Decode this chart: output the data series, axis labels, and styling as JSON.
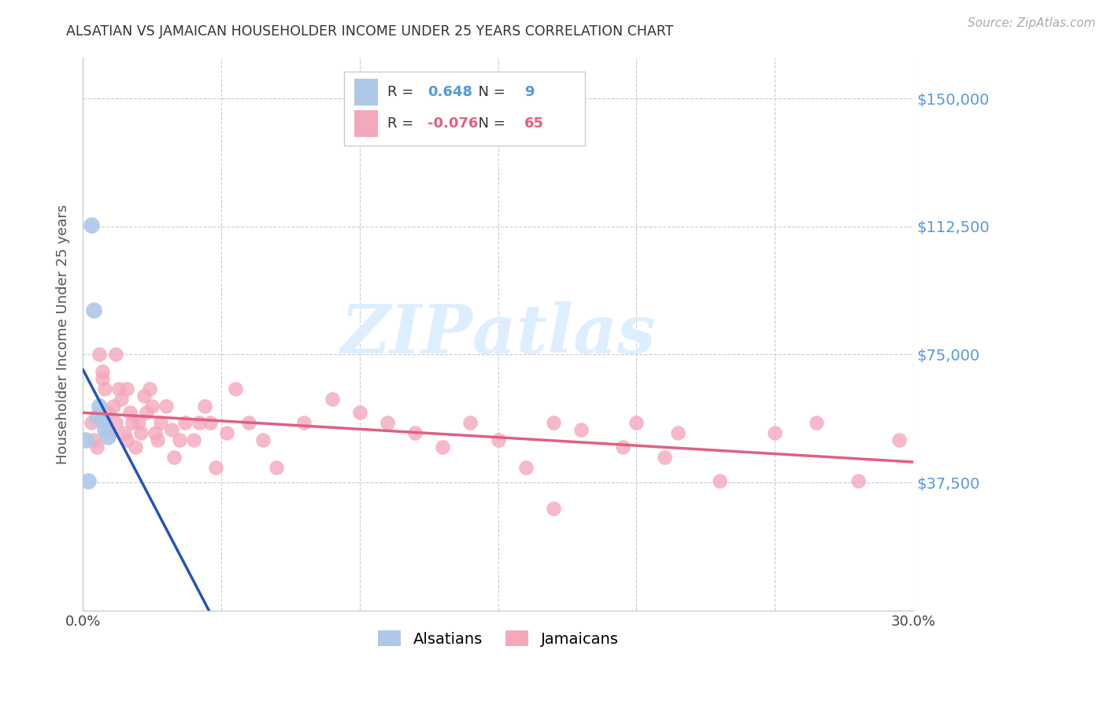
{
  "title": "ALSATIAN VS JAMAICAN HOUSEHOLDER INCOME UNDER 25 YEARS CORRELATION CHART",
  "source": "Source: ZipAtlas.com",
  "ylabel": "Householder Income Under 25 years",
  "xlim": [
    0.0,
    0.3
  ],
  "ylim": [
    0,
    162000
  ],
  "yticks": [
    0,
    37500,
    75000,
    112500,
    150000
  ],
  "ytick_labels": [
    "",
    "$37,500",
    "$75,000",
    "$112,500",
    "$150,000"
  ],
  "xticks": [
    0.0,
    0.05,
    0.1,
    0.15,
    0.2,
    0.25,
    0.3
  ],
  "xtick_labels": [
    "0.0%",
    "",
    "",
    "",
    "",
    "",
    "30.0%"
  ],
  "alsatian_color": "#adc8e8",
  "jamaican_color": "#f4a8bc",
  "alsatian_line_color": "#2255bb",
  "jamaican_line_color": "#e06080",
  "r_alsatian": 0.648,
  "n_alsatian": 9,
  "r_jamaican": -0.076,
  "n_jamaican": 65,
  "als_x": [
    0.001,
    0.003,
    0.004,
    0.005,
    0.006,
    0.007,
    0.008,
    0.009,
    0.002
  ],
  "als_y": [
    50000,
    113000,
    88000,
    57000,
    60000,
    56000,
    53000,
    51000,
    38000
  ],
  "jam_x": [
    0.003,
    0.004,
    0.005,
    0.006,
    0.007,
    0.007,
    0.008,
    0.009,
    0.01,
    0.011,
    0.012,
    0.012,
    0.013,
    0.014,
    0.015,
    0.016,
    0.016,
    0.017,
    0.018,
    0.019,
    0.02,
    0.021,
    0.022,
    0.023,
    0.024,
    0.025,
    0.026,
    0.027,
    0.028,
    0.03,
    0.032,
    0.033,
    0.035,
    0.037,
    0.04,
    0.042,
    0.044,
    0.046,
    0.048,
    0.052,
    0.055,
    0.06,
    0.065,
    0.07,
    0.08,
    0.09,
    0.1,
    0.11,
    0.12,
    0.13,
    0.14,
    0.15,
    0.16,
    0.17,
    0.18,
    0.195,
    0.2,
    0.215,
    0.23,
    0.25,
    0.265,
    0.28,
    0.295,
    0.17,
    0.21
  ],
  "jam_y": [
    55000,
    50000,
    48000,
    75000,
    70000,
    68000,
    65000,
    58000,
    52000,
    60000,
    55000,
    75000,
    65000,
    62000,
    52000,
    50000,
    65000,
    58000,
    55000,
    48000,
    55000,
    52000,
    63000,
    58000,
    65000,
    60000,
    52000,
    50000,
    55000,
    60000,
    53000,
    45000,
    50000,
    55000,
    50000,
    55000,
    60000,
    55000,
    42000,
    52000,
    65000,
    55000,
    50000,
    42000,
    55000,
    62000,
    58000,
    55000,
    52000,
    48000,
    55000,
    50000,
    42000,
    55000,
    53000,
    48000,
    55000,
    52000,
    38000,
    52000,
    55000,
    38000,
    50000,
    30000,
    45000
  ],
  "background_color": "#ffffff",
  "grid_color": "#cccccc",
  "tick_color": "#5599dd",
  "watermark_color": "#ddeeff",
  "legend_label_alsatian": "Alsatians",
  "legend_label_jamaican": "Jamaicans",
  "als_line_x0": 0.0,
  "als_line_x1": 0.065,
  "als_line_dash_x1": 0.22,
  "jam_line_x0": 0.0,
  "jam_line_x1": 0.3
}
